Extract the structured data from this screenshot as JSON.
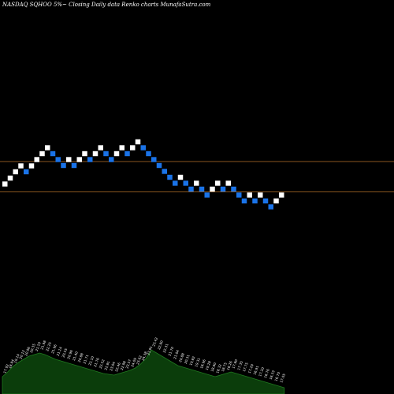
{
  "title": "NASDAQ SQHOO 5%~  Closing Daily data  Renko  charts MunafaSutra.com",
  "colors": {
    "background": "#000000",
    "up_brick": "#ffffff",
    "down_brick": "#1a73e8",
    "reference_line": "#b8732a",
    "volume_fill": "#0b3d0b",
    "volume_stroke": "#1f7a1f"
  },
  "chart_data": {
    "type": "renko",
    "ylim": [
      0,
      100
    ],
    "reference_lines": [
      59.0,
      51.3
    ],
    "bricks": [
      {
        "dir": "up",
        "level": 53.3
      },
      {
        "dir": "up",
        "level": 54.8
      },
      {
        "dir": "up",
        "level": 56.4
      },
      {
        "dir": "up",
        "level": 57.9
      },
      {
        "dir": "down",
        "level": 56.4
      },
      {
        "dir": "up",
        "level": 57.9
      },
      {
        "dir": "up",
        "level": 59.5
      },
      {
        "dir": "up",
        "level": 61.0
      },
      {
        "dir": "up",
        "level": 62.5
      },
      {
        "dir": "down",
        "level": 61.0
      },
      {
        "dir": "down",
        "level": 59.5
      },
      {
        "dir": "down",
        "level": 58.0
      },
      {
        "dir": "up",
        "level": 59.5
      },
      {
        "dir": "down",
        "level": 58.0
      },
      {
        "dir": "up",
        "level": 59.5
      },
      {
        "dir": "up",
        "level": 61.0
      },
      {
        "dir": "down",
        "level": 59.5
      },
      {
        "dir": "up",
        "level": 61.0
      },
      {
        "dir": "up",
        "level": 62.5
      },
      {
        "dir": "down",
        "level": 61.0
      },
      {
        "dir": "down",
        "level": 59.5
      },
      {
        "dir": "up",
        "level": 61.0
      },
      {
        "dir": "up",
        "level": 62.5
      },
      {
        "dir": "down",
        "level": 61.0
      },
      {
        "dir": "up",
        "level": 62.5
      },
      {
        "dir": "up",
        "level": 64.0
      },
      {
        "dir": "down",
        "level": 62.5
      },
      {
        "dir": "down",
        "level": 61.0
      },
      {
        "dir": "down",
        "level": 59.5
      },
      {
        "dir": "down",
        "level": 58.0
      },
      {
        "dir": "down",
        "level": 56.5
      },
      {
        "dir": "down",
        "level": 55.0
      },
      {
        "dir": "down",
        "level": 53.5
      },
      {
        "dir": "up",
        "level": 55.0
      },
      {
        "dir": "down",
        "level": 53.5
      },
      {
        "dir": "down",
        "level": 52.0
      },
      {
        "dir": "up",
        "level": 53.5
      },
      {
        "dir": "down",
        "level": 52.0
      },
      {
        "dir": "down",
        "level": 50.5
      },
      {
        "dir": "up",
        "level": 52.0
      },
      {
        "dir": "up",
        "level": 53.5
      },
      {
        "dir": "down",
        "level": 52.0
      },
      {
        "dir": "up",
        "level": 53.5
      },
      {
        "dir": "down",
        "level": 52.0
      },
      {
        "dir": "down",
        "level": 50.5
      },
      {
        "dir": "down",
        "level": 49.0
      },
      {
        "dir": "up",
        "level": 50.5
      },
      {
        "dir": "down",
        "level": 49.0
      },
      {
        "dir": "up",
        "level": 50.5
      },
      {
        "dir": "down",
        "level": 49.0
      },
      {
        "dir": "down",
        "level": 47.5
      },
      {
        "dir": "up",
        "level": 49.0
      },
      {
        "dir": "up",
        "level": 50.5
      }
    ],
    "volume_profile": [
      22,
      28,
      35,
      40,
      44,
      48,
      50,
      52,
      50,
      47,
      44,
      42,
      40,
      38,
      36,
      34,
      32,
      30,
      28,
      26,
      25,
      24,
      26,
      28,
      30,
      33,
      38,
      45,
      56,
      52,
      48,
      44,
      40,
      36,
      34,
      32,
      30,
      28,
      26,
      24,
      22,
      24,
      26,
      28,
      26,
      24,
      22,
      20,
      18,
      16,
      14,
      12,
      10,
      8
    ],
    "volume_labels": [
      "17.92",
      "18.84",
      "19.14",
      "20.12",
      "20.96",
      "20.35",
      "21.10",
      "21.98",
      "22.25",
      "21.96",
      "21.14",
      "20.55",
      "20.96",
      "21.40",
      "20.88",
      "21.71",
      "22.10",
      "21.76",
      "22.52",
      "22.81",
      "23.04",
      "22.46",
      "22.98",
      "23.57",
      "24.09",
      "23.62",
      "24.38",
      "23.91",
      "23.42",
      "22.80",
      "22.31",
      "21.70",
      "21.04",
      "20.88",
      "20.31",
      "19.82",
      "19.31",
      "18.96",
      "19.28",
      "18.80",
      "18.32",
      "18.75",
      "18.26",
      "17.80",
      "17.35",
      "17.75",
      "17.29",
      "16.91",
      "17.20",
      "16.76",
      "16.33",
      "16.70",
      "17.05"
    ]
  }
}
